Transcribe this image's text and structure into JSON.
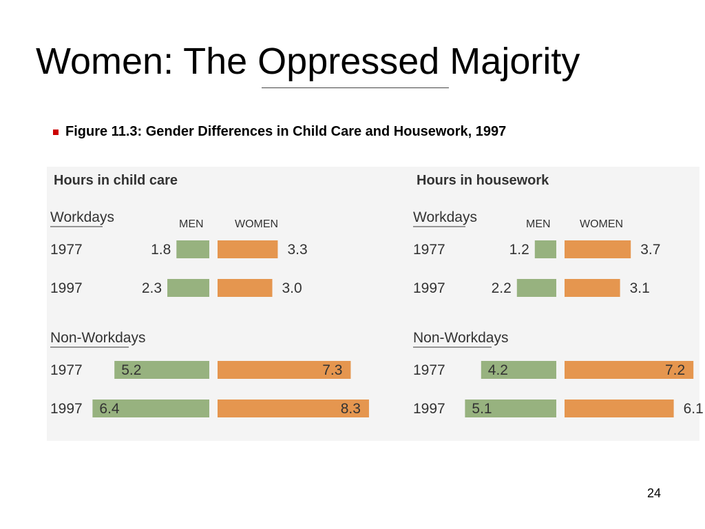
{
  "slide": {
    "title": "Women: The Oppressed Majority",
    "bullet": "Figure 11.3: Gender Differences in Child Care and Housework, 1997",
    "page_number": "24"
  },
  "colors": {
    "men": "#97b27f",
    "women": "#e5964f",
    "panel_bg": "#f4f4f4",
    "bullet": "#cc0000"
  },
  "chart_data": [
    {
      "type": "bar",
      "orientation": "horizontal-butterfly",
      "title": "Hours in child care",
      "series_labels": {
        "men": "MEN",
        "women": "WOMEN"
      },
      "groups": [
        {
          "label": "Workdays",
          "rows": [
            {
              "year": "1977",
              "men": 1.8,
              "women": 3.3
            },
            {
              "year": "1997",
              "men": 2.3,
              "women": 3.0
            }
          ]
        },
        {
          "label": "Non-Workdays",
          "rows": [
            {
              "year": "1977",
              "men": 5.2,
              "women": 7.3
            },
            {
              "year": "1997",
              "men": 6.4,
              "women": 8.3
            }
          ]
        }
      ]
    },
    {
      "type": "bar",
      "orientation": "horizontal-butterfly",
      "title": "Hours in housework",
      "series_labels": {
        "men": "MEN",
        "women": "WOMEN"
      },
      "groups": [
        {
          "label": "Workdays",
          "rows": [
            {
              "year": "1977",
              "men": 1.2,
              "women": 3.7
            },
            {
              "year": "1997",
              "men": 2.2,
              "women": 3.1
            }
          ]
        },
        {
          "label": "Non-Workdays",
          "rows": [
            {
              "year": "1977",
              "men": 4.2,
              "women": 7.2
            },
            {
              "year": "1997",
              "men": 5.1,
              "women": 6.1
            }
          ]
        }
      ]
    }
  ]
}
